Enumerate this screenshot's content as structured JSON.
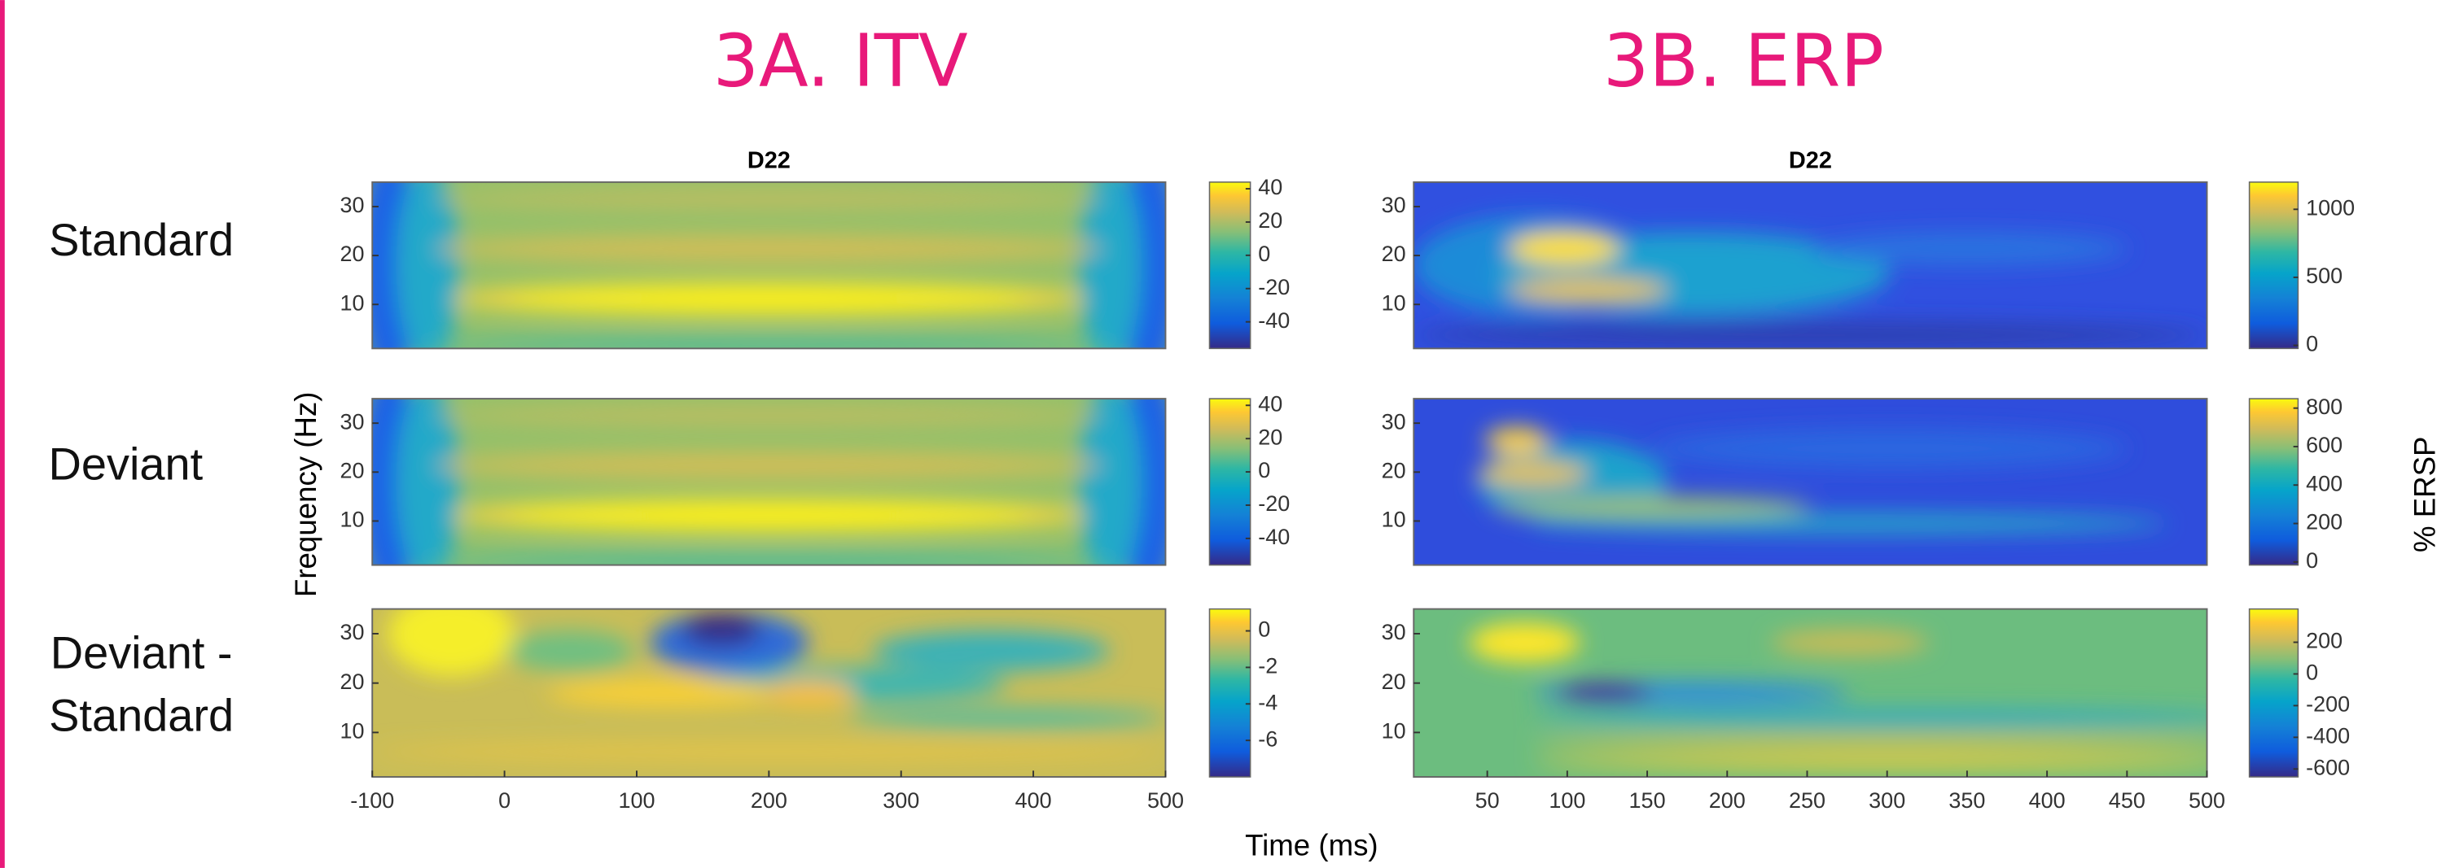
{
  "headings": [
    "3A. ITV",
    "3B. ERP"
  ],
  "row_labels": [
    [
      "Standard"
    ],
    [
      "Deviant"
    ],
    [
      "Deviant -",
      "Standard"
    ]
  ],
  "y_label": "Frequency (Hz)",
  "x_label": "Time (ms)",
  "colorbar_label": "% ERSP",
  "chart_data": [
    {
      "type": "heatmap",
      "title": "D22",
      "ylim": [
        1,
        35
      ],
      "yticks": [
        10,
        20,
        30
      ],
      "clim": [
        -56,
        44
      ],
      "cticks": [
        40,
        20,
        0,
        -20,
        -40
      ]
    },
    {
      "type": "heatmap",
      "ylim": [
        1,
        35
      ],
      "yticks": [
        10,
        20,
        30
      ],
      "clim": [
        -56,
        44
      ],
      "cticks": [
        40,
        20,
        0,
        -20,
        -40
      ]
    },
    {
      "type": "heatmap",
      "xlim": [
        -100,
        500
      ],
      "xticks": [
        -100,
        0,
        100,
        200,
        300,
        400,
        500
      ],
      "ylim": [
        1,
        35
      ],
      "yticks": [
        10,
        20,
        30
      ],
      "clim": [
        -8,
        1.2
      ],
      "cticks": [
        0,
        -2,
        -4,
        -6
      ]
    },
    {
      "type": "heatmap",
      "title": "D22",
      "ylim": [
        1,
        35
      ],
      "yticks": [
        10,
        20,
        30
      ],
      "clim": [
        -23,
        1200
      ],
      "cticks": [
        1000,
        500,
        0
      ]
    },
    {
      "type": "heatmap",
      "ylim": [
        1,
        35
      ],
      "yticks": [
        10,
        20,
        30
      ],
      "clim": [
        -16,
        849
      ],
      "cticks": [
        800,
        600,
        400,
        200,
        0
      ]
    },
    {
      "type": "heatmap",
      "xlim": [
        4,
        500
      ],
      "xticks": [
        50,
        100,
        150,
        200,
        250,
        300,
        350,
        400,
        450,
        500
      ],
      "ylim": [
        1,
        35
      ],
      "yticks": [
        10,
        20,
        30
      ],
      "clim": [
        -650,
        410
      ],
      "cticks": [
        200,
        0,
        -200,
        -400,
        -600
      ]
    }
  ]
}
